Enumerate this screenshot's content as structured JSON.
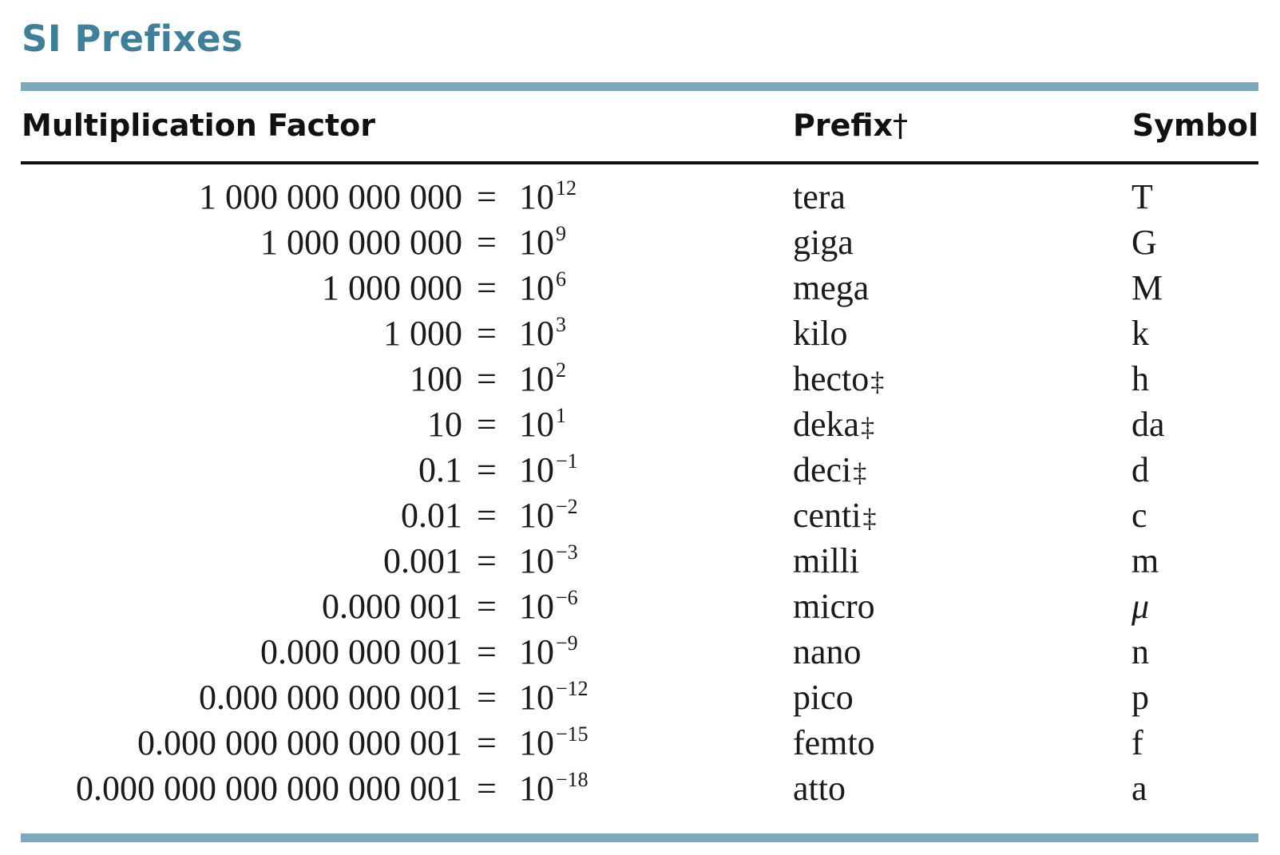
{
  "title": "SI Prefixes",
  "headers": {
    "factor": "Multiplication Factor",
    "prefix": "Prefix",
    "prefix_mark": "†",
    "symbol": "Symbol"
  },
  "colors": {
    "title": "#3e7f9a",
    "rule_accent": "#7ea8bd",
    "text": "#1a1a1a"
  },
  "rows": [
    {
      "number": "1 000 000 000 000",
      "equals": "=",
      "base": "10",
      "exponent": "12",
      "prefix": "tera",
      "mark": "",
      "symbol": "T"
    },
    {
      "number": "1 000 000 000",
      "equals": "=",
      "base": "10",
      "exponent": "9",
      "prefix": "giga",
      "mark": "",
      "symbol": "G"
    },
    {
      "number": "1 000 000",
      "equals": "=",
      "base": "10",
      "exponent": "6",
      "prefix": "mega",
      "mark": "",
      "symbol": "M"
    },
    {
      "number": "1 000",
      "equals": "=",
      "base": "10",
      "exponent": "3",
      "prefix": "kilo",
      "mark": "",
      "symbol": "k"
    },
    {
      "number": "100",
      "equals": "=",
      "base": "10",
      "exponent": "2",
      "prefix": "hecto",
      "mark": "‡",
      "symbol": "h"
    },
    {
      "number": "10",
      "equals": "=",
      "base": "10",
      "exponent": "1",
      "prefix": "deka",
      "mark": "‡",
      "symbol": "da"
    },
    {
      "number": "0.1",
      "equals": "=",
      "base": "10",
      "exponent": "−1",
      "prefix": "deci",
      "mark": "‡",
      "symbol": "d"
    },
    {
      "number": "0.01",
      "equals": "=",
      "base": "10",
      "exponent": "−2",
      "prefix": "centi",
      "mark": "‡",
      "symbol": "c"
    },
    {
      "number": "0.001",
      "equals": "=",
      "base": "10",
      "exponent": "−3",
      "prefix": "milli",
      "mark": "",
      "symbol": "m"
    },
    {
      "number": "0.000 001",
      "equals": "=",
      "base": "10",
      "exponent": "−6",
      "prefix": "micro",
      "mark": "",
      "symbol": "μ"
    },
    {
      "number": "0.000 000 001",
      "equals": "=",
      "base": "10",
      "exponent": "−9",
      "prefix": "nano",
      "mark": "",
      "symbol": "n"
    },
    {
      "number": "0.000 000 000 001",
      "equals": "=",
      "base": "10",
      "exponent": "−12",
      "prefix": "pico",
      "mark": "",
      "symbol": "p"
    },
    {
      "number": "0.000 000 000 000 001",
      "equals": "=",
      "base": "10",
      "exponent": "−15",
      "prefix": "femto",
      "mark": "",
      "symbol": "f"
    },
    {
      "number": "0.000 000 000 000 000 001",
      "equals": "=",
      "base": "10",
      "exponent": "−18",
      "prefix": "atto",
      "mark": "",
      "symbol": "a"
    }
  ]
}
